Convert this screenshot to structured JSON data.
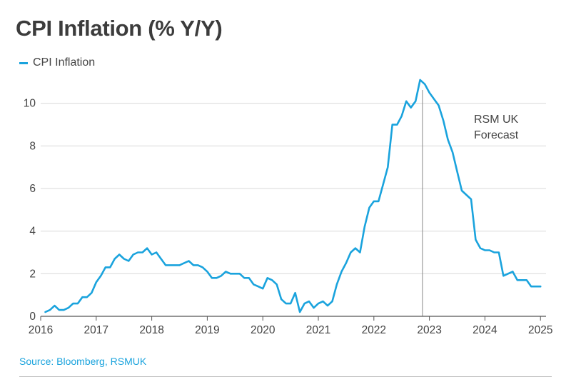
{
  "title": "CPI Inflation (% Y/Y)",
  "legend": {
    "label": "CPI Inflation"
  },
  "source": "Source: Bloomberg, RSMUK",
  "colors": {
    "series": "#1aa3dd",
    "grid": "#d9d9d9",
    "axis": "#555555",
    "forecast_line": "#888888",
    "text": "#444444"
  },
  "chart_data": {
    "type": "line",
    "title": "CPI Inflation (% Y/Y)",
    "xlabel": "",
    "ylabel": "",
    "xlim": [
      2016.0,
      2025.1
    ],
    "ylim": [
      0,
      11.5
    ],
    "x_ticks": [
      "2016",
      "2017",
      "2018",
      "2019",
      "2020",
      "2021",
      "2022",
      "2023",
      "2024",
      "2025"
    ],
    "y_ticks": [
      "0",
      "2",
      "4",
      "6",
      "8",
      "10"
    ],
    "grid": "horizontal",
    "legend": "top-left",
    "annotation": {
      "text_lines": [
        "RSM UK",
        "Forecast"
      ],
      "x": 2022.875
    },
    "series": [
      {
        "name": "CPI Inflation",
        "color": "#1aa3dd",
        "x": [
          2016.083,
          2016.167,
          2016.25,
          2016.333,
          2016.417,
          2016.5,
          2016.583,
          2016.667,
          2016.75,
          2016.833,
          2016.917,
          2017.0,
          2017.083,
          2017.167,
          2017.25,
          2017.333,
          2017.417,
          2017.5,
          2017.583,
          2017.667,
          2017.75,
          2017.833,
          2017.917,
          2018.0,
          2018.083,
          2018.167,
          2018.25,
          2018.333,
          2018.417,
          2018.5,
          2018.583,
          2018.667,
          2018.75,
          2018.833,
          2018.917,
          2019.0,
          2019.083,
          2019.167,
          2019.25,
          2019.333,
          2019.417,
          2019.5,
          2019.583,
          2019.667,
          2019.75,
          2019.833,
          2019.917,
          2020.0,
          2020.083,
          2020.167,
          2020.25,
          2020.333,
          2020.417,
          2020.5,
          2020.583,
          2020.667,
          2020.75,
          2020.833,
          2020.917,
          2021.0,
          2021.083,
          2021.167,
          2021.25,
          2021.333,
          2021.417,
          2021.5,
          2021.583,
          2021.667,
          2021.75,
          2021.833,
          2021.917,
          2022.0,
          2022.083,
          2022.167,
          2022.25,
          2022.333,
          2022.417,
          2022.5,
          2022.583,
          2022.667,
          2022.75,
          2022.833,
          2022.917,
          2023.0,
          2023.083,
          2023.167,
          2023.25,
          2023.333,
          2023.417,
          2023.5,
          2023.583,
          2023.667,
          2023.75,
          2023.833,
          2023.917,
          2024.0,
          2024.083,
          2024.167,
          2024.25,
          2024.333,
          2024.417,
          2024.5,
          2024.583,
          2024.667,
          2024.75,
          2024.833,
          2024.917,
          2025.0
        ],
        "y": [
          0.2,
          0.3,
          0.5,
          0.3,
          0.3,
          0.4,
          0.6,
          0.6,
          0.9,
          0.9,
          1.1,
          1.6,
          1.9,
          2.3,
          2.3,
          2.7,
          2.9,
          2.7,
          2.6,
          2.9,
          3.0,
          3.0,
          3.2,
          2.9,
          3.0,
          2.7,
          2.4,
          2.4,
          2.4,
          2.4,
          2.5,
          2.6,
          2.4,
          2.4,
          2.3,
          2.1,
          1.8,
          1.8,
          1.9,
          2.1,
          2.0,
          2.0,
          2.0,
          1.8,
          1.8,
          1.5,
          1.4,
          1.3,
          1.8,
          1.7,
          1.5,
          0.8,
          0.6,
          0.6,
          1.1,
          0.2,
          0.6,
          0.7,
          0.4,
          0.6,
          0.7,
          0.5,
          0.7,
          1.5,
          2.1,
          2.5,
          3.0,
          3.2,
          3.0,
          4.2,
          5.1,
          5.4,
          5.4,
          6.2,
          7.0,
          9.0,
          9.0,
          9.4,
          10.1,
          9.8,
          10.1,
          11.1,
          10.9,
          10.5,
          10.2,
          9.9,
          9.2,
          8.3,
          7.7,
          6.8,
          5.9,
          5.7,
          5.5,
          3.6,
          3.2,
          3.1,
          3.1,
          3.0,
          3.0,
          1.9,
          2.0,
          2.1,
          1.7,
          1.7,
          1.7,
          1.4,
          1.4,
          1.4
        ]
      }
    ]
  }
}
